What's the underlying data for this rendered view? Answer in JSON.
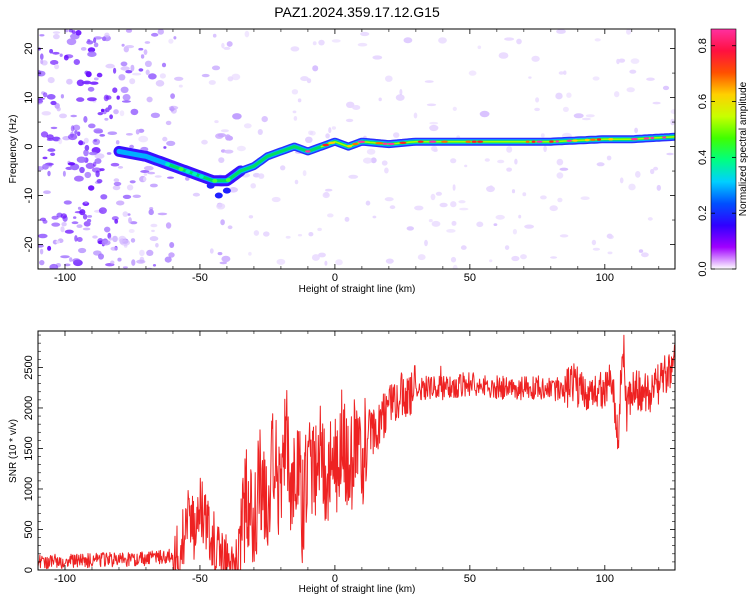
{
  "chart_data": [
    {
      "type": "heatmap",
      "title": "PAZ1.2024.359.17.12.G15",
      "xlabel": "Height of straight line (km)",
      "ylabel": "Frequency (Hz)",
      "xlim": [
        -110,
        126
      ],
      "ylim": [
        -25,
        24
      ],
      "xticks": [
        -100,
        -50,
        0,
        50,
        100
      ],
      "yticks": [
        -20,
        -10,
        0,
        10,
        20
      ],
      "colorbar": {
        "label": "Normalized spectral amplitude",
        "range": [
          0,
          0.86
        ],
        "ticks": [
          "0.0",
          "0.2",
          "0.4",
          "0.6",
          "0.8"
        ],
        "colors": [
          "#ffffff",
          "#a000ff",
          "#3000ff",
          "#0050ff",
          "#00d0ff",
          "#00ff80",
          "#40ff00",
          "#c8ff00",
          "#ffd000",
          "#ff5000",
          "#ff1040",
          "#ff30a0"
        ]
      },
      "ridge_frequency": {
        "x": [
          -80,
          -70,
          -60,
          -55,
          -50,
          -45,
          -40,
          -35,
          -30,
          -25,
          -20,
          -15,
          -10,
          -5,
          0,
          5,
          10,
          20,
          30,
          50,
          80,
          100,
          110,
          126
        ],
        "y": [
          -1,
          -2,
          -4,
          -5,
          -6,
          -7,
          -7,
          -5,
          -4,
          -2,
          -1,
          0,
          -1,
          0,
          1,
          0,
          1,
          0.5,
          1,
          1,
          1,
          1.5,
          1.5,
          2
        ]
      }
    },
    {
      "type": "line",
      "title": "",
      "xlabel": "Height of straight line (km)",
      "ylabel": "SNR (10 * v/v)",
      "xlim": [
        -110,
        126
      ],
      "ylim": [
        0,
        2950
      ],
      "xticks": [
        -100,
        -50,
        0,
        50,
        100
      ],
      "yticks": [
        0,
        500,
        1000,
        1500,
        2000,
        2500
      ],
      "series": [
        {
          "color": "#ee2222",
          "x": [
            -110,
            -100,
            -90,
            -80,
            -70,
            -60,
            -57,
            -55,
            -52,
            -50,
            -48,
            -45,
            -42,
            -40,
            -37,
            -35,
            -33,
            -30,
            -28,
            -25,
            -23,
            -20,
            -18,
            -16,
            -14,
            -12,
            -10,
            -8,
            -5,
            -3,
            -1,
            1,
            3,
            5,
            8,
            10,
            12,
            15,
            18,
            20,
            25,
            30,
            40,
            50,
            60,
            70,
            80,
            85,
            88,
            90,
            95,
            100,
            103,
            105,
            106,
            107,
            108,
            110,
            113,
            116,
            120,
            122,
            124,
            126
          ],
          "y": [
            100,
            110,
            120,
            130,
            140,
            180,
            250,
            650,
            500,
            800,
            600,
            350,
            250,
            150,
            100,
            200,
            900,
            400,
            1200,
            650,
            1400,
            900,
            1900,
            800,
            1500,
            700,
            1450,
            1200,
            1650,
            1000,
            1550,
            1300,
            1700,
            1100,
            1750,
            1200,
            1800,
            1700,
            1900,
            2000,
            2150,
            2250,
            2250,
            2300,
            2250,
            2250,
            2250,
            2200,
            2300,
            2250,
            2200,
            2250,
            2300,
            1600,
            2400,
            2800,
            1900,
            2200,
            2200,
            2150,
            2300,
            2400,
            2500,
            2600
          ]
        }
      ]
    }
  ]
}
